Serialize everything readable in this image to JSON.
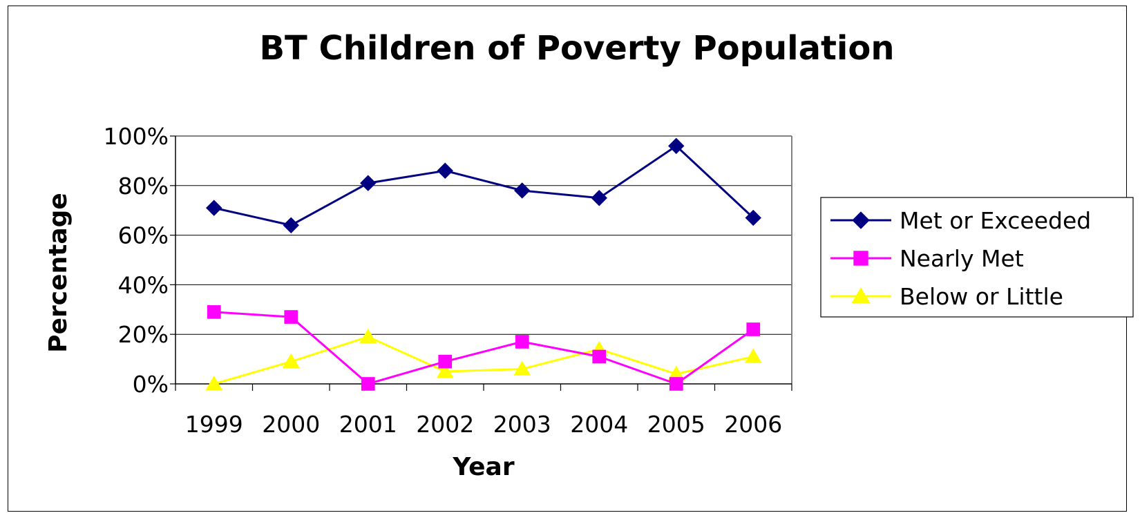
{
  "chart_data": {
    "type": "line",
    "title": "BT Children of Poverty Population",
    "xlabel": "Year",
    "ylabel": "Percentage",
    "categories": [
      "1999",
      "2000",
      "2001",
      "2002",
      "2003",
      "2004",
      "2005",
      "2006"
    ],
    "ylim": [
      0,
      100
    ],
    "yticks": [
      "0%",
      "20%",
      "40%",
      "60%",
      "80%",
      "100%"
    ],
    "grid": true,
    "legend_position": "right",
    "series": [
      {
        "name": "Met or Exceeded",
        "color": "#000080",
        "marker": "diamond",
        "values": [
          71,
          64,
          81,
          86,
          78,
          75,
          96,
          67
        ]
      },
      {
        "name": "Nearly Met",
        "color": "#ff00ff",
        "marker": "square",
        "values": [
          29,
          27,
          0,
          9,
          17,
          11,
          0,
          22
        ]
      },
      {
        "name": "Below or Little",
        "color": "#ffff00",
        "marker": "triangle",
        "values": [
          0,
          9,
          19,
          5,
          6,
          14,
          4,
          11
        ]
      }
    ]
  }
}
